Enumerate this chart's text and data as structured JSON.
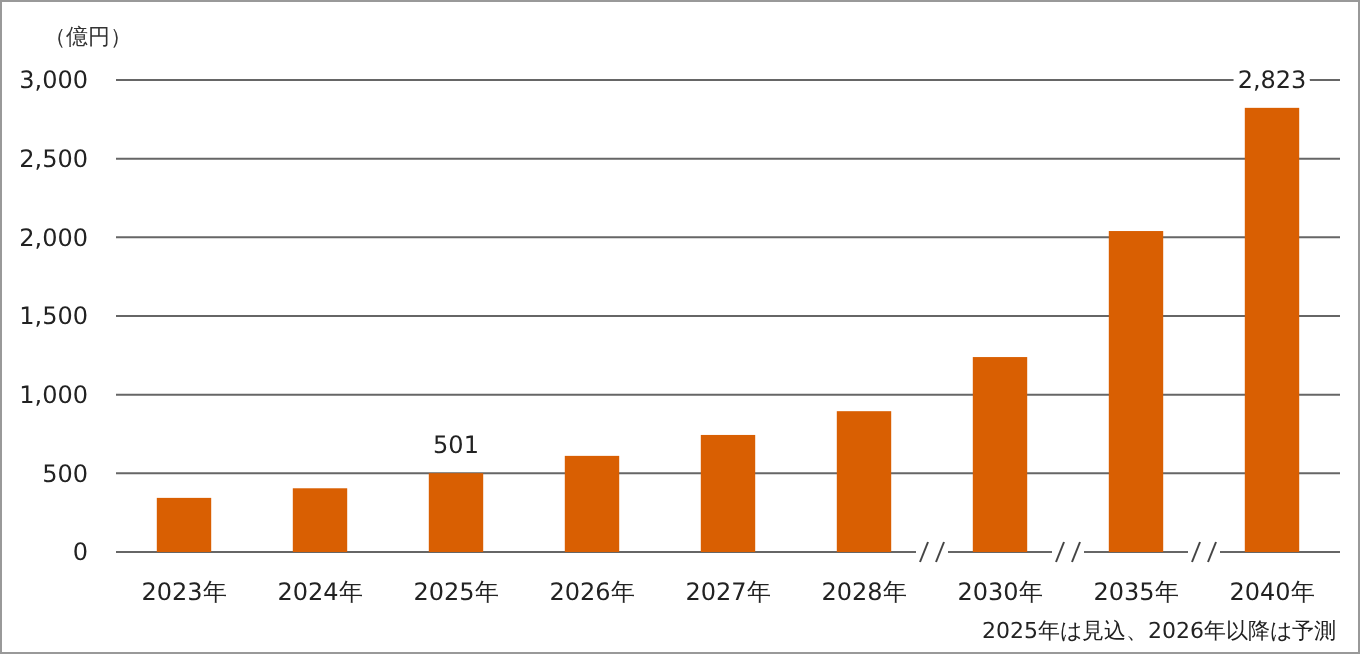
{
  "chart_data": {
    "type": "bar",
    "ylabel": "（億円）",
    "categories": [
      "2023年",
      "2024年",
      "2025年",
      "2026年",
      "2027年",
      "2028年",
      "2030年",
      "2035年",
      "2040年"
    ],
    "values": [
      344,
      405,
      501,
      611,
      744,
      895,
      1239,
      2040,
      2823
    ],
    "value_labels": [
      null,
      null,
      "501",
      null,
      null,
      null,
      null,
      null,
      "2,823"
    ],
    "color": "#d95f02",
    "ylim": [
      0,
      3000
    ],
    "yticks": [
      {
        "value": 0,
        "label": "0"
      },
      {
        "value": 500,
        "label": "500"
      },
      {
        "value": 1000,
        "label": "1,000"
      },
      {
        "value": 1500,
        "label": "1,500"
      },
      {
        "value": 2000,
        "label": "2,000"
      },
      {
        "value": 2500,
        "label": "2,500"
      },
      {
        "value": 3000,
        "label": "3,000"
      }
    ],
    "grid": "y",
    "annotations": [
      "2025年は見込、2026年以降は予測"
    ]
  }
}
